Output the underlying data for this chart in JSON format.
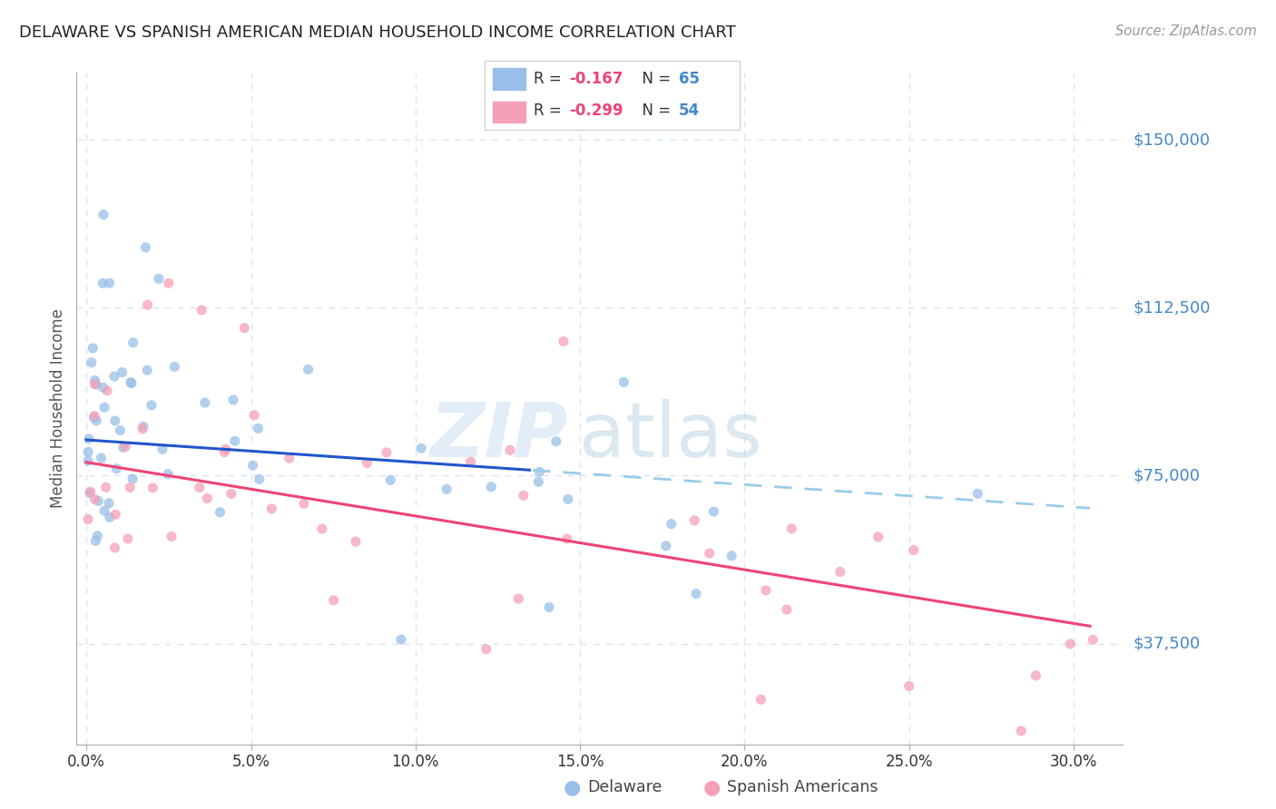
{
  "title": "DELAWARE VS SPANISH AMERICAN MEDIAN HOUSEHOLD INCOME CORRELATION CHART",
  "source": "Source: ZipAtlas.com",
  "ylabel": "Median Household Income",
  "yticks": [
    37500,
    75000,
    112500,
    150000
  ],
  "ytick_labels": [
    "$37,500",
    "$75,000",
    "$112,500",
    "$150,000"
  ],
  "xticks": [
    0.0,
    5.0,
    10.0,
    15.0,
    20.0,
    25.0,
    30.0
  ],
  "xtick_labels": [
    "0.0%",
    "5.0%",
    "10.0%",
    "15.0%",
    "20.0%",
    "25.0%",
    "30.0%"
  ],
  "ylim": [
    15000,
    165000
  ],
  "xlim": [
    -0.3,
    31.5
  ],
  "watermark_zip": "ZIP",
  "watermark_atlas": "atlas",
  "background_color": "#ffffff",
  "grid_color": "#d8e4f0",
  "title_color": "#222222",
  "axis_label_color": "#555555",
  "ytick_color": "#4488cc",
  "xtick_color": "#333333",
  "delaware_color": "#99bfe8",
  "spanish_color": "#f5a0b8",
  "trend_del_color": "#2255cc",
  "trend_spa_color": "#ee4477",
  "dashed_color": "#99cce8",
  "legend1_label_r": "R =  -0.167",
  "legend1_label_n": "N = 65",
  "legend2_label_r": "R =  -0.299",
  "legend2_label_n": "N = 54",
  "legend_r_color": "#ee4477",
  "legend_n_color": "#2255cc",
  "bottom_label1": "Delaware",
  "bottom_label2": "Spanish Americans",
  "del_trend_intercept": 83000,
  "del_trend_slope": -500,
  "spa_trend_intercept": 78000,
  "spa_trend_slope": -1200,
  "dashed_start_x": 13.5,
  "dashed_end_x": 31.0
}
